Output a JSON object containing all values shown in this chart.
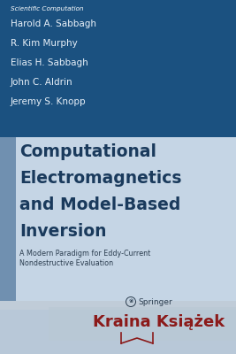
{
  "series_title": "Scientific Computation",
  "authors": [
    "Harold A. Sabbagh",
    "R. Kim Murphy",
    "Elias H. Sabbagh",
    "John C. Aldrin",
    "Jeremy S. Knopp"
  ],
  "main_title_lines": [
    "Computational",
    "Electromagnetics",
    "and Model-Based",
    "Inversion"
  ],
  "subtitle_line1": "A Modern Paradigm for Eddy-Current",
  "subtitle_line2": "Nondestructive Evaluation",
  "publisher": "Springer",
  "watermark_text": "Kraina Książek",
  "top_bg_color": "#1b5180",
  "lower_bg_color": "#c8d8e8",
  "lower_left_strip_color": "#4a6f9a",
  "lower_right_bg_color": "#b8ccd8",
  "bottom_bar_color": "#c0ccd8",
  "watermark_bg_color": "#c0ccd8",
  "series_text_color": "#ffffff",
  "author_text_color": "#e8f0f8",
  "main_title_color": "#1a3a5c",
  "subtitle_color": "#2c3e50",
  "publisher_color": "#2c3e50",
  "watermark_color": "#8b1a1a",
  "fig_width": 2.67,
  "fig_height": 4.0,
  "dpi": 100
}
